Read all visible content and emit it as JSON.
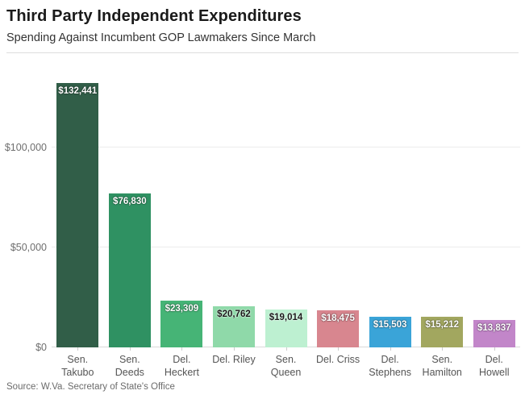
{
  "header": {
    "title": "Third Party Independent Expenditures",
    "subtitle": "Spending Against Incumbent GOP Lawmakers Since March"
  },
  "footer": {
    "source": "Source: W.Va. Secretary of State's Office"
  },
  "chart_data": {
    "type": "bar",
    "title": "Third Party Independent Expenditures",
    "subtitle": "Spending Against Incumbent GOP Lawmakers Since March",
    "categories": [
      "Sen. Takubo",
      "Sen. Deeds",
      "Del. Heckert",
      "Del. Riley",
      "Sen. Queen",
      "Del. Criss",
      "Del. Stephens",
      "Sen. Hamilton",
      "Del. Howell"
    ],
    "values": [
      132441,
      76830,
      23309,
      20762,
      19014,
      18475,
      15503,
      15212,
      13837
    ],
    "value_labels": [
      "$132,441",
      "$76,830",
      "$23,309",
      "$20,762",
      "$19,014",
      "$18,475",
      "$15,503",
      "$15,212",
      "$13,837"
    ],
    "bar_colors": [
      "#315E48",
      "#2F9162",
      "#46B476",
      "#8FD9A9",
      "#BDF0D1",
      "#D8868F",
      "#3AA4D8",
      "#A2A75F",
      "#C286C9"
    ],
    "label_text_colors": [
      "#ffffff",
      "#ffffff",
      "#ffffff",
      "#1a1a1a",
      "#1a1a1a",
      "#ffffff",
      "#ffffff",
      "#ffffff",
      "#ffffff"
    ],
    "x_tick_lines": [
      [
        "Sen.",
        "Takubo"
      ],
      [
        "Sen.",
        "Deeds"
      ],
      [
        "Del.",
        "Heckert"
      ],
      [
        "Del. Riley"
      ],
      [
        "Sen.",
        "Queen"
      ],
      [
        "Del. Criss"
      ],
      [
        "Del.",
        "Stephens"
      ],
      [
        "Sen.",
        "Hamilton"
      ],
      [
        "Del.",
        "Howell"
      ]
    ],
    "y_ticks": [
      {
        "value": 0,
        "label": "$0"
      },
      {
        "value": 50000,
        "label": "$50,000"
      },
      {
        "value": 100000,
        "label": "$100,000"
      }
    ],
    "ylim": [
      0,
      140000
    ],
    "xlabel": "",
    "ylabel": "",
    "grid": true,
    "legend": false
  }
}
